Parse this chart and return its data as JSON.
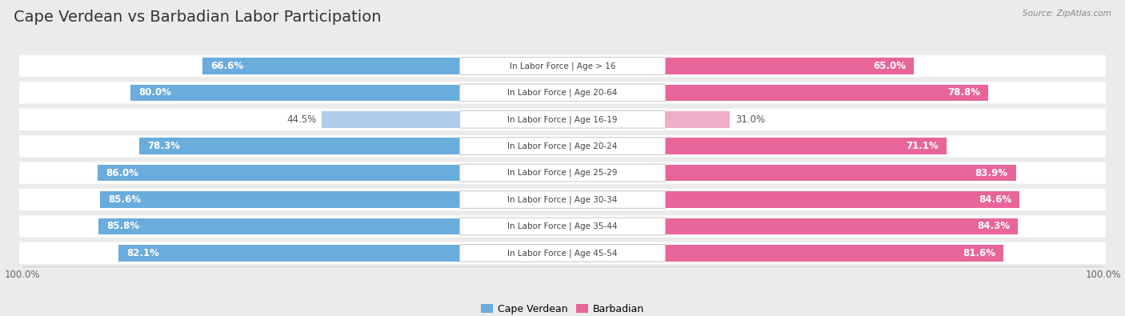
{
  "title": "Cape Verdean vs Barbadian Labor Participation",
  "source": "Source: ZipAtlas.com",
  "categories": [
    "In Labor Force | Age > 16",
    "In Labor Force | Age 20-64",
    "In Labor Force | Age 16-19",
    "In Labor Force | Age 20-24",
    "In Labor Force | Age 25-29",
    "In Labor Force | Age 30-34",
    "In Labor Force | Age 35-44",
    "In Labor Force | Age 45-54"
  ],
  "cape_verdean": [
    66.6,
    80.0,
    44.5,
    78.3,
    86.0,
    85.6,
    85.8,
    82.1
  ],
  "barbadian": [
    65.0,
    78.8,
    31.0,
    71.1,
    83.9,
    84.6,
    84.3,
    81.6
  ],
  "cv_color": "#6aacdc",
  "cv_color_light": "#aecde8",
  "bb_color": "#e8659a",
  "bb_color_light": "#f0adc8",
  "bg_color": "#ebebeb",
  "row_bg": "#f5f5f5",
  "title_fontsize": 14,
  "value_fontsize": 8.5,
  "cat_fontsize": 7.5,
  "legend_fontsize": 9,
  "axis_label_fontsize": 8.5,
  "max_val": 100.0
}
